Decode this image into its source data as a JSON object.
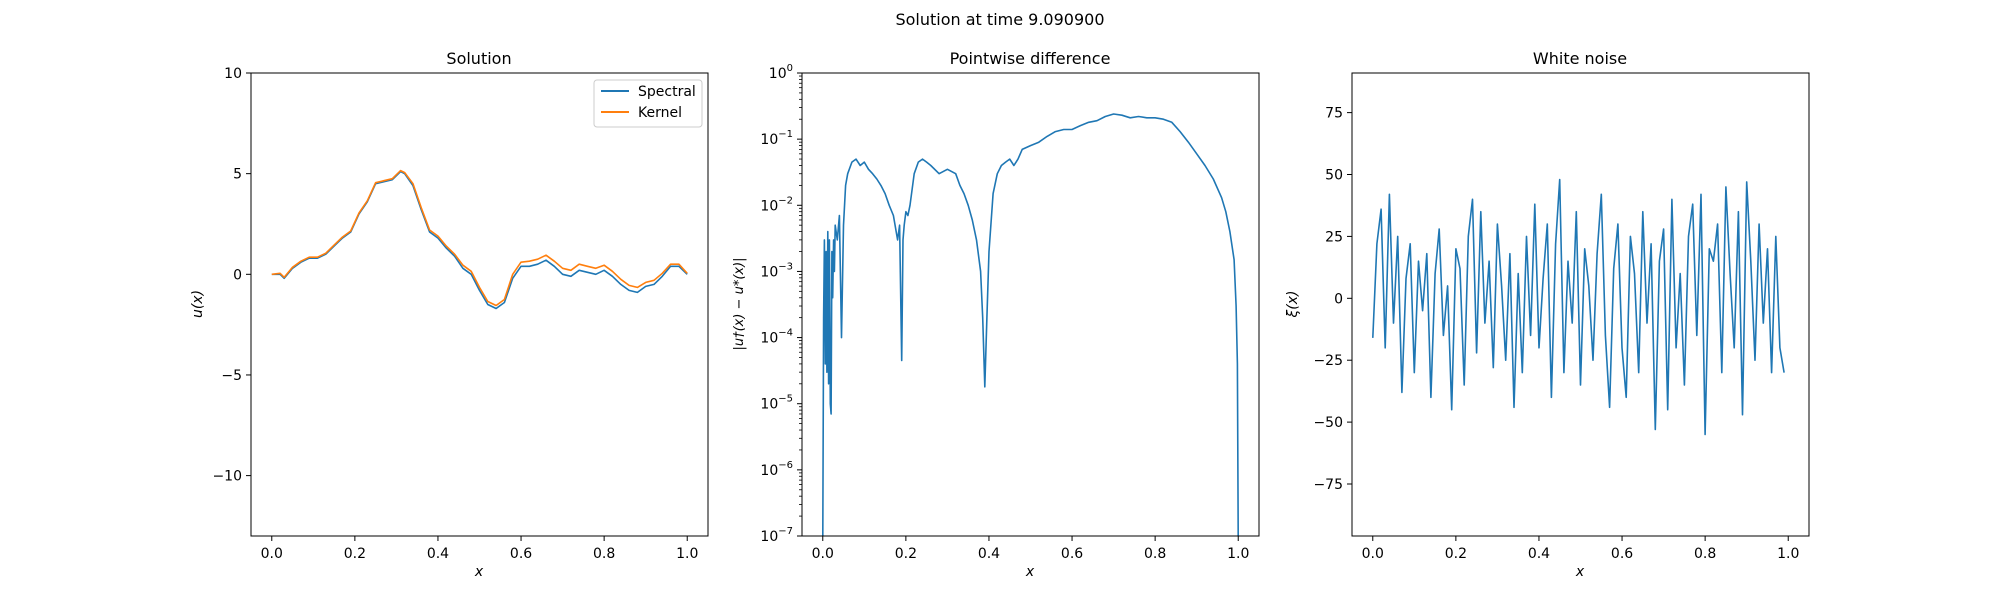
{
  "figure": {
    "suptitle": "Solution at time 9.090900"
  },
  "chart_data": [
    {
      "type": "line",
      "title": "Solution",
      "xlabel": "x",
      "ylabel": "u(x)",
      "xlim": [
        -0.05,
        1.05
      ],
      "ylim": [
        -13,
        10
      ],
      "xticks": [
        0.0,
        0.2,
        0.4,
        0.6,
        0.8,
        1.0
      ],
      "xtick_labels": [
        "0.0",
        "0.2",
        "0.4",
        "0.6",
        "0.8",
        "1.0"
      ],
      "yticks": [
        -10,
        -5,
        0,
        5,
        10
      ],
      "ytick_labels": [
        "−10",
        "−5",
        "0",
        "5",
        "10"
      ],
      "legend": "top-right",
      "grid": false,
      "series": [
        {
          "name": "Spectral",
          "color": "#1f77b4",
          "x": [
            0.0,
            0.02,
            0.03,
            0.05,
            0.07,
            0.09,
            0.11,
            0.13,
            0.15,
            0.17,
            0.19,
            0.21,
            0.23,
            0.25,
            0.27,
            0.29,
            0.31,
            0.32,
            0.34,
            0.36,
            0.38,
            0.4,
            0.42,
            0.44,
            0.46,
            0.48,
            0.5,
            0.52,
            0.54,
            0.56,
            0.58,
            0.6,
            0.62,
            0.64,
            0.66,
            0.68,
            0.7,
            0.72,
            0.74,
            0.76,
            0.78,
            0.8,
            0.82,
            0.84,
            0.86,
            0.88,
            0.9,
            0.92,
            0.94,
            0.96,
            0.98,
            1.0
          ],
          "y": [
            0.0,
            0.0,
            -0.2,
            0.3,
            0.6,
            0.8,
            0.8,
            1.0,
            1.4,
            1.8,
            2.1,
            3.0,
            3.6,
            4.5,
            4.6,
            4.7,
            5.1,
            5.0,
            4.4,
            3.2,
            2.1,
            1.8,
            1.3,
            0.9,
            0.3,
            0.0,
            -0.8,
            -1.5,
            -1.7,
            -1.4,
            -0.2,
            0.4,
            0.4,
            0.5,
            0.7,
            0.4,
            0.0,
            -0.1,
            0.2,
            0.1,
            0.0,
            0.2,
            -0.1,
            -0.5,
            -0.8,
            -0.9,
            -0.6,
            -0.5,
            -0.1,
            0.4,
            0.4,
            0.0
          ]
        },
        {
          "name": "Kernel",
          "color": "#ff7f0e",
          "x": [
            0.0,
            0.02,
            0.03,
            0.05,
            0.07,
            0.09,
            0.11,
            0.13,
            0.15,
            0.17,
            0.19,
            0.21,
            0.23,
            0.25,
            0.27,
            0.29,
            0.31,
            0.32,
            0.34,
            0.36,
            0.38,
            0.4,
            0.42,
            0.44,
            0.46,
            0.48,
            0.5,
            0.52,
            0.54,
            0.56,
            0.58,
            0.6,
            0.62,
            0.64,
            0.66,
            0.68,
            0.7,
            0.72,
            0.74,
            0.76,
            0.78,
            0.8,
            0.82,
            0.84,
            0.86,
            0.88,
            0.9,
            0.92,
            0.94,
            0.96,
            0.98,
            1.0
          ],
          "y": [
            0.0,
            0.05,
            -0.15,
            0.35,
            0.65,
            0.85,
            0.85,
            1.05,
            1.45,
            1.85,
            2.15,
            3.05,
            3.65,
            4.55,
            4.65,
            4.75,
            5.15,
            5.05,
            4.5,
            3.3,
            2.2,
            1.9,
            1.4,
            1.0,
            0.45,
            0.15,
            -0.65,
            -1.35,
            -1.55,
            -1.25,
            0.0,
            0.6,
            0.65,
            0.75,
            0.95,
            0.65,
            0.3,
            0.2,
            0.5,
            0.4,
            0.3,
            0.45,
            0.15,
            -0.25,
            -0.55,
            -0.65,
            -0.4,
            -0.3,
            0.05,
            0.5,
            0.5,
            0.05
          ]
        }
      ]
    },
    {
      "type": "line",
      "title": "Pointwise difference",
      "xlabel": "x",
      "ylabel": "|u†(x) − u*(x)|",
      "xlim": [
        -0.05,
        1.05
      ],
      "ylim": [
        1e-07,
        1
      ],
      "yscale": "log",
      "xticks": [
        0.0,
        0.2,
        0.4,
        0.6,
        0.8,
        1.0
      ],
      "xtick_labels": [
        "0.0",
        "0.2",
        "0.4",
        "0.6",
        "0.8",
        "1.0"
      ],
      "yticks": [
        1e-07,
        1e-06,
        1e-05,
        0.0001,
        0.001,
        0.01,
        0.1,
        1
      ],
      "ytick_labels": [
        "10^-7",
        "10^-6",
        "10^-5",
        "10^-4",
        "10^-3",
        "10^-2",
        "10^-1",
        "10^0"
      ],
      "grid": false,
      "series": [
        {
          "color": "#1f77b4",
          "x": [
            0.0,
            0.002,
            0.004,
            0.006,
            0.008,
            0.01,
            0.012,
            0.014,
            0.016,
            0.018,
            0.02,
            0.022,
            0.024,
            0.026,
            0.028,
            0.03,
            0.035,
            0.04,
            0.045,
            0.05,
            0.055,
            0.06,
            0.07,
            0.08,
            0.09,
            0.1,
            0.11,
            0.12,
            0.13,
            0.14,
            0.15,
            0.16,
            0.17,
            0.18,
            0.185,
            0.19,
            0.193,
            0.196,
            0.2,
            0.205,
            0.21,
            0.22,
            0.23,
            0.24,
            0.25,
            0.26,
            0.28,
            0.3,
            0.32,
            0.33,
            0.34,
            0.35,
            0.36,
            0.37,
            0.38,
            0.385,
            0.39,
            0.395,
            0.4,
            0.41,
            0.42,
            0.43,
            0.44,
            0.45,
            0.46,
            0.47,
            0.48,
            0.5,
            0.52,
            0.54,
            0.56,
            0.58,
            0.6,
            0.62,
            0.64,
            0.66,
            0.68,
            0.7,
            0.72,
            0.74,
            0.76,
            0.78,
            0.8,
            0.82,
            0.84,
            0.86,
            0.88,
            0.9,
            0.92,
            0.94,
            0.96,
            0.97,
            0.98,
            0.99,
            0.995,
            0.998,
            1.0
          ],
          "y": [
            1e-07,
            0.0002,
            0.003,
            4e-05,
            0.002,
            3e-05,
            0.004,
            2e-05,
            0.003,
            1e-05,
            7e-06,
            0.002,
            0.0004,
            0.003,
            0.001,
            0.005,
            0.003,
            0.007,
            0.0001,
            0.005,
            0.02,
            0.03,
            0.045,
            0.05,
            0.04,
            0.045,
            0.035,
            0.03,
            0.025,
            0.02,
            0.015,
            0.01,
            0.007,
            0.003,
            0.005,
            4.5e-05,
            0.003,
            0.005,
            0.008,
            0.007,
            0.01,
            0.03,
            0.045,
            0.05,
            0.045,
            0.04,
            0.03,
            0.035,
            0.03,
            0.02,
            0.015,
            0.01,
            0.006,
            0.003,
            0.001,
            0.0002,
            1.8e-05,
            0.0002,
            0.002,
            0.015,
            0.03,
            0.04,
            0.045,
            0.05,
            0.04,
            0.05,
            0.07,
            0.08,
            0.09,
            0.11,
            0.13,
            0.14,
            0.14,
            0.16,
            0.18,
            0.19,
            0.22,
            0.24,
            0.23,
            0.21,
            0.22,
            0.21,
            0.21,
            0.2,
            0.18,
            0.13,
            0.09,
            0.06,
            0.04,
            0.025,
            0.013,
            0.008,
            0.004,
            0.0015,
            0.0003,
            4e-05,
            1e-07
          ]
        }
      ]
    },
    {
      "type": "line",
      "title": "White noise",
      "xlabel": "x",
      "ylabel": "ξ(x)",
      "xlim": [
        -0.05,
        1.05
      ],
      "ylim": [
        -96,
        91
      ],
      "xticks": [
        0.0,
        0.2,
        0.4,
        0.6,
        0.8,
        1.0
      ],
      "xtick_labels": [
        "0.0",
        "0.2",
        "0.4",
        "0.6",
        "0.8",
        "1.0"
      ],
      "yticks": [
        -75,
        -50,
        -25,
        0,
        25,
        50,
        75
      ],
      "ytick_labels": [
        "−75",
        "−50",
        "−25",
        "0",
        "25",
        "50",
        "75"
      ],
      "grid": false,
      "series": [
        {
          "color": "#1f77b4",
          "x": [
            0.0,
            0.01,
            0.02,
            0.03,
            0.04,
            0.05,
            0.06,
            0.07,
            0.08,
            0.09,
            0.1,
            0.11,
            0.12,
            0.13,
            0.14,
            0.15,
            0.16,
            0.17,
            0.18,
            0.19,
            0.2,
            0.21,
            0.22,
            0.23,
            0.24,
            0.25,
            0.26,
            0.27,
            0.28,
            0.29,
            0.3,
            0.31,
            0.32,
            0.33,
            0.34,
            0.35,
            0.36,
            0.37,
            0.38,
            0.39,
            0.4,
            0.41,
            0.42,
            0.43,
            0.44,
            0.45,
            0.46,
            0.47,
            0.48,
            0.49,
            0.5,
            0.51,
            0.52,
            0.53,
            0.54,
            0.55,
            0.56,
            0.57,
            0.58,
            0.59,
            0.6,
            0.61,
            0.62,
            0.63,
            0.64,
            0.65,
            0.66,
            0.67,
            0.68,
            0.69,
            0.7,
            0.71,
            0.72,
            0.73,
            0.74,
            0.75,
            0.76,
            0.77,
            0.78,
            0.79,
            0.8,
            0.81,
            0.82,
            0.83,
            0.84,
            0.85,
            0.86,
            0.87,
            0.88,
            0.89,
            0.9,
            0.91,
            0.92,
            0.93,
            0.94,
            0.95,
            0.96,
            0.97,
            0.98,
            0.99
          ],
          "y": [
            -16,
            22,
            36,
            -20,
            42,
            -10,
            25,
            -38,
            8,
            22,
            -30,
            15,
            -5,
            18,
            -40,
            10,
            28,
            -15,
            5,
            -45,
            20,
            12,
            -35,
            25,
            40,
            -22,
            35,
            -10,
            15,
            -28,
            30,
            5,
            -25,
            18,
            -44,
            10,
            -30,
            25,
            -15,
            38,
            -20,
            8,
            30,
            -40,
            22,
            48,
            -30,
            15,
            -10,
            35,
            -35,
            20,
            5,
            -25,
            18,
            42,
            -15,
            -44,
            12,
            30,
            -20,
            -40,
            25,
            10,
            -30,
            35,
            -10,
            22,
            -53,
            15,
            28,
            -45,
            40,
            -20,
            10,
            -35,
            25,
            38,
            -15,
            42,
            -55,
            20,
            15,
            30,
            -30,
            45,
            10,
            -20,
            35,
            -47,
            47,
            15,
            -25,
            30,
            -10,
            20,
            -30,
            25,
            -20,
            -30
          ]
        }
      ]
    }
  ]
}
